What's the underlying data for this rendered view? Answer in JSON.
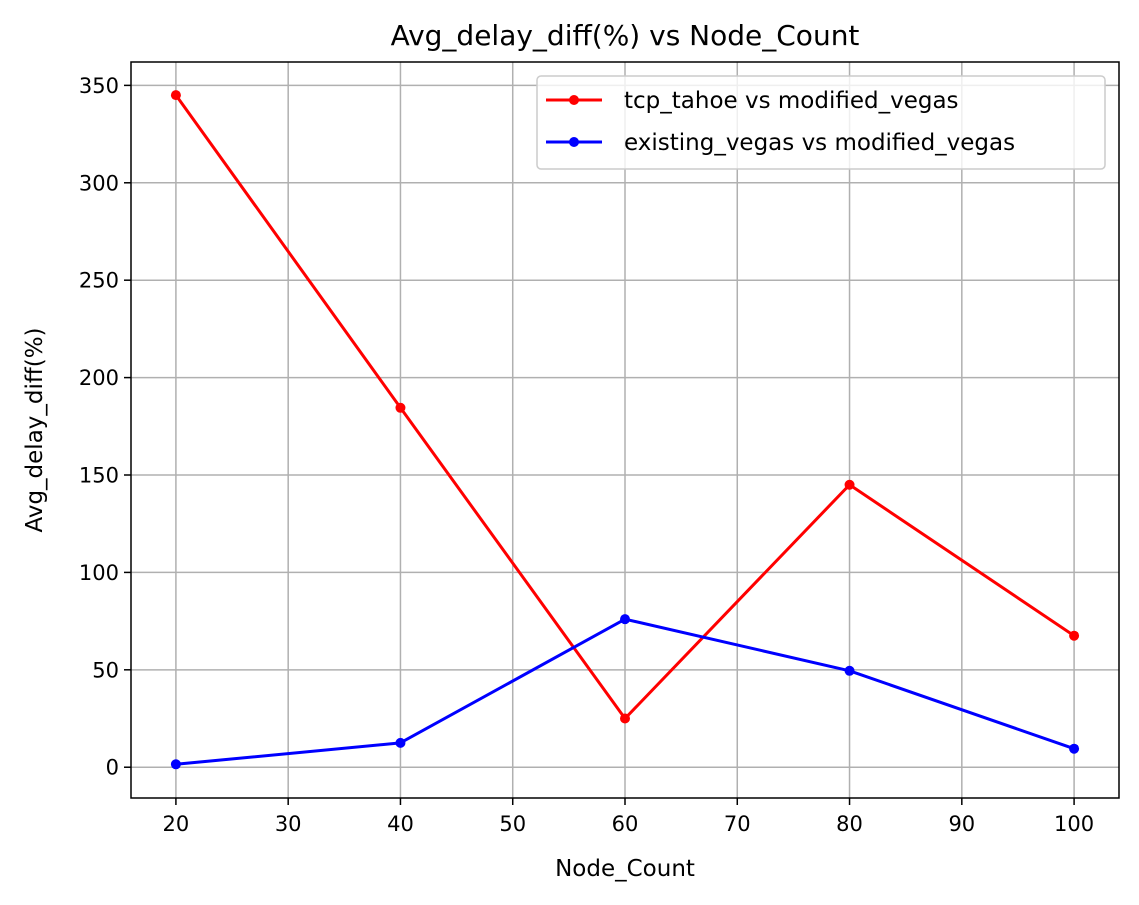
{
  "chart_data": {
    "type": "line",
    "title": "Avg_delay_diff(%) vs Node_Count",
    "xlabel": "Node_Count",
    "ylabel": "Avg_delay_diff(%)",
    "x": [
      20,
      40,
      60,
      80,
      100
    ],
    "xlim": [
      16,
      104
    ],
    "ylim": [
      -15.8,
      362
    ],
    "xticks": [
      20,
      30,
      40,
      50,
      60,
      70,
      80,
      90,
      100
    ],
    "yticks": [
      0,
      50,
      100,
      150,
      200,
      250,
      300,
      350
    ],
    "grid": true,
    "legend_position": "top-right",
    "series": [
      {
        "name": "tcp_tahoe vs modified_vegas",
        "color": "#ff0000",
        "values": [
          345,
          184.5,
          25,
          145,
          67.5
        ]
      },
      {
        "name": "existing_vegas vs modified_vegas",
        "color": "#0000ff",
        "values": [
          1.5,
          12.5,
          76,
          49.5,
          9.5
        ]
      }
    ]
  }
}
